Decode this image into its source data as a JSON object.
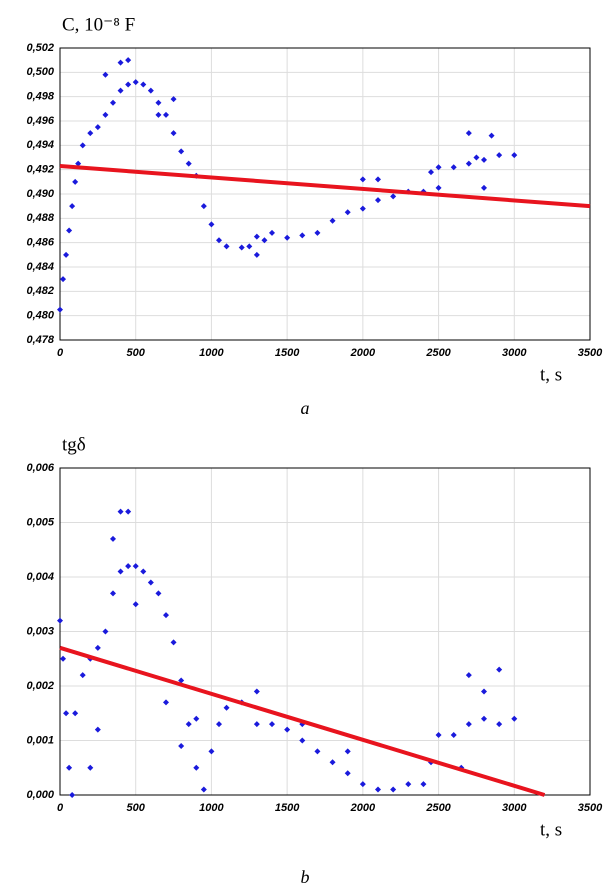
{
  "chart_data": [
    {
      "type": "scatter",
      "ylabel": "C, 10⁻⁸ F",
      "xlabel": "t, s",
      "caption": "a",
      "color": "#1a1adc",
      "grid": true,
      "x": [
        0,
        20,
        40,
        60,
        80,
        100,
        120,
        150,
        200,
        250,
        300,
        350,
        400,
        450,
        500,
        550,
        600,
        650,
        700,
        750,
        800,
        850,
        900,
        950,
        1000,
        1050,
        1100,
        1200,
        1250,
        1300,
        1350,
        1400,
        1500,
        1600,
        1700,
        1800,
        1900,
        2000,
        2100,
        2200,
        2300,
        2400,
        2450,
        2500,
        2600,
        2700,
        2750,
        2800,
        2900,
        3000,
        400,
        450,
        300,
        650,
        750,
        1300,
        2700,
        2850,
        2800,
        2000,
        2100,
        2500
      ],
      "values": [
        0.4805,
        0.483,
        0.485,
        0.487,
        0.489,
        0.491,
        0.4925,
        0.494,
        0.495,
        0.4955,
        0.4965,
        0.4975,
        0.4985,
        0.499,
        0.4992,
        0.499,
        0.4985,
        0.4975,
        0.4965,
        0.495,
        0.4935,
        0.4925,
        0.4915,
        0.489,
        0.4875,
        0.4862,
        0.4857,
        0.4856,
        0.4857,
        0.4865,
        0.4862,
        0.4868,
        0.4864,
        0.4866,
        0.4868,
        0.4878,
        0.4885,
        0.4888,
        0.4895,
        0.4898,
        0.4902,
        0.4902,
        0.4918,
        0.4922,
        0.4922,
        0.4925,
        0.493,
        0.4928,
        0.4932,
        0.4932,
        0.5008,
        0.501,
        0.4998,
        0.4965,
        0.4978,
        0.485,
        0.495,
        0.4948,
        0.4905,
        0.4912,
        0.4912,
        0.4905
      ],
      "trend": {
        "color": "#e8141e",
        "x": [
          0,
          3500
        ],
        "values": [
          0.4923,
          0.489
        ]
      },
      "xlim": [
        0,
        3500
      ],
      "xticks": [
        0,
        500,
        1000,
        1500,
        2000,
        2500,
        3000,
        3500
      ],
      "ylim": [
        0.478,
        0.502
      ],
      "yticks": [
        {
          "value": 0.478,
          "label": "0,478"
        },
        {
          "value": 0.48,
          "label": "0,480"
        },
        {
          "value": 0.482,
          "label": "0,482"
        },
        {
          "value": 0.484,
          "label": "0,484"
        },
        {
          "value": 0.486,
          "label": "0,486"
        },
        {
          "value": 0.488,
          "label": "0,488"
        },
        {
          "value": 0.49,
          "label": "0,490"
        },
        {
          "value": 0.492,
          "label": "0,492"
        },
        {
          "value": 0.494,
          "label": "0,494"
        },
        {
          "value": 0.496,
          "label": "0,496"
        },
        {
          "value": 0.498,
          "label": "0,498"
        },
        {
          "value": 0.5,
          "label": "0,500"
        },
        {
          "value": 0.502,
          "label": "0,502"
        }
      ]
    },
    {
      "type": "scatter",
      "ylabel": "tgδ",
      "xlabel": "t, s",
      "caption": "b",
      "color": "#1a1adc",
      "grid": true,
      "x": [
        0,
        20,
        40,
        60,
        80,
        100,
        150,
        200,
        250,
        300,
        350,
        400,
        450,
        500,
        550,
        600,
        650,
        700,
        750,
        800,
        850,
        900,
        950,
        1000,
        1050,
        1100,
        1200,
        1300,
        1400,
        1500,
        1600,
        1700,
        1800,
        1900,
        2000,
        2100,
        2200,
        2300,
        2400,
        2450,
        2500,
        2600,
        2700,
        2800,
        2900,
        3000,
        400,
        450,
        350,
        250,
        200,
        500,
        700,
        800,
        900,
        1300,
        1600,
        1900,
        2700,
        2900,
        2800,
        2650
      ],
      "values": [
        0.0032,
        0.0025,
        0.0015,
        0.0005,
        0.0,
        0.0015,
        0.0022,
        0.0025,
        0.0027,
        0.003,
        0.0037,
        0.0041,
        0.0042,
        0.0042,
        0.0041,
        0.0039,
        0.0037,
        0.0033,
        0.0028,
        0.0021,
        0.0013,
        0.0005,
        0.0001,
        0.0008,
        0.0013,
        0.0016,
        0.0017,
        0.0013,
        0.0013,
        0.0012,
        0.001,
        0.0008,
        0.0006,
        0.0004,
        0.0002,
        0.0001,
        0.0001,
        0.0002,
        0.0002,
        0.0006,
        0.0011,
        0.0011,
        0.0013,
        0.0014,
        0.0013,
        0.0014,
        0.0052,
        0.0052,
        0.0047,
        0.0012,
        0.0005,
        0.0035,
        0.0017,
        0.0009,
        0.0014,
        0.0019,
        0.0013,
        0.0008,
        0.0022,
        0.0023,
        0.0019,
        0.0005
      ],
      "trend": {
        "color": "#e8141e",
        "x": [
          0,
          3200
        ],
        "values": [
          0.0027,
          0.0
        ]
      },
      "xlim": [
        0,
        3500
      ],
      "xticks": [
        0,
        500,
        1000,
        1500,
        2000,
        2500,
        3000,
        3500
      ],
      "ylim": [
        0,
        0.006
      ],
      "yticks": [
        {
          "value": 0,
          "label": "0,000"
        },
        {
          "value": 0.001,
          "label": "0,001"
        },
        {
          "value": 0.002,
          "label": "0,002"
        },
        {
          "value": 0.003,
          "label": "0,003"
        },
        {
          "value": 0.004,
          "label": "0,004"
        },
        {
          "value": 0.005,
          "label": "0,005"
        },
        {
          "value": 0.006,
          "label": "0,006"
        }
      ]
    }
  ]
}
